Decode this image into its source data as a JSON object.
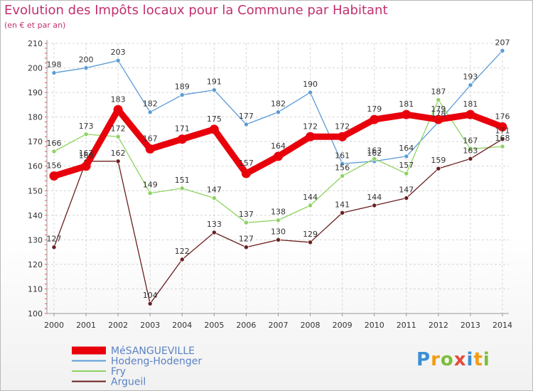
{
  "title": "Evolution des Impôts locaux pour la Commune par Habitant",
  "subtitle": "(en € et par an)",
  "logo": "Proxiti",
  "chart_data": {
    "type": "line",
    "title": "Evolution des Impôts locaux pour la Commune par Habitant",
    "subtitle": "(en € et par an)",
    "xlabel": "",
    "ylabel": "",
    "ylim": [
      100,
      210
    ],
    "yticks": [
      100,
      110,
      120,
      130,
      140,
      150,
      160,
      170,
      180,
      190,
      200,
      210
    ],
    "grid": true,
    "legend_position": "bottom",
    "x": [
      "2000",
      "2001",
      "2002",
      "2003",
      "2004",
      "2005",
      "2006",
      "2007",
      "2008",
      "2009",
      "2010",
      "2011",
      "2012",
      "2013",
      "2014"
    ],
    "series": [
      {
        "name": "MéSANGUEVILLE",
        "color": "#e8000b",
        "values": [
          156,
          160,
          183,
          167,
          171,
          175,
          157,
          164,
          172,
          172,
          179,
          181,
          179,
          181,
          176
        ]
      },
      {
        "name": "Hodeng-Hodenger",
        "color": "#5b9bd5",
        "values": [
          198,
          200,
          203,
          182,
          189,
          191,
          177,
          182,
          190,
          161,
          162,
          164,
          178,
          193,
          207
        ]
      },
      {
        "name": "Fry",
        "color": "#8dd35f",
        "values": [
          166,
          173,
          172,
          149,
          151,
          147,
          137,
          138,
          144,
          156,
          163,
          157,
          187,
          167,
          168
        ]
      },
      {
        "name": "Argueil",
        "color": "#6b1f1f",
        "values": [
          127,
          162,
          162,
          104,
          122,
          133,
          127,
          130,
          129,
          141,
          144,
          147,
          159,
          163,
          171
        ]
      }
    ]
  }
}
